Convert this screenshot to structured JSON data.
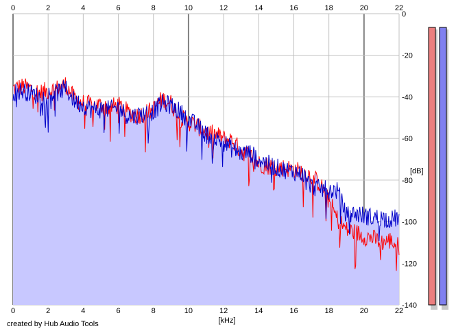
{
  "footer": {
    "credit": "created by Hub Audio Tools"
  },
  "chart_data": {
    "type": "line",
    "xlabel": "[kHz]",
    "ylabel": "[dB]",
    "xlim": [
      0,
      22
    ],
    "ylim": [
      -140,
      0
    ],
    "xticks": [
      0,
      2,
      4,
      6,
      8,
      10,
      12,
      14,
      16,
      18,
      20,
      22
    ],
    "yticks": [
      0,
      -20,
      -40,
      -60,
      -80,
      -100,
      -120,
      -140
    ],
    "grid": true,
    "legend": "none",
    "colors": {
      "left_channel": "#ff0000",
      "right_channel": "#0000c8",
      "fill": "#c8c8ff",
      "grid": "#c0c0c0",
      "grid_major": "#808080",
      "meter_left": "#ec7f7f",
      "meter_right": "#8080f0"
    },
    "x": [
      0,
      0.5,
      1,
      1.5,
      2,
      2.5,
      3,
      3.5,
      4,
      4.5,
      5,
      5.5,
      6,
      6.5,
      7,
      7.5,
      8,
      8.5,
      9,
      9.5,
      10,
      10.5,
      11,
      11.5,
      12,
      12.5,
      13,
      13.5,
      14,
      14.5,
      15,
      15.5,
      16,
      16.5,
      17,
      17.5,
      18,
      18.5,
      19,
      19.5,
      20,
      20.5,
      21,
      21.5,
      22
    ],
    "series": [
      {
        "values": [
          -36,
          -35,
          -36,
          -38,
          -37,
          -36,
          -34,
          -41,
          -43,
          -44,
          -44,
          -45,
          -44,
          -47,
          -49,
          -48,
          -46,
          -41,
          -43,
          -50,
          -52,
          -54,
          -57,
          -58,
          -60,
          -61,
          -66,
          -68,
          -72,
          -73,
          -74,
          -74,
          -75,
          -76,
          -78,
          -82,
          -90,
          -99,
          -104,
          -105,
          -107,
          -108,
          -110,
          -109,
          -112
        ]
      },
      {
        "values": [
          -38,
          -37,
          -38,
          -40,
          -39,
          -38,
          -36,
          -42,
          -44,
          -46,
          -46,
          -46,
          -45,
          -49,
          -49,
          -48,
          -47,
          -43,
          -44,
          -47,
          -51,
          -54,
          -58,
          -60,
          -62,
          -65,
          -67,
          -67,
          -70,
          -72,
          -74,
          -75,
          -76,
          -77,
          -83,
          -84,
          -85,
          -85,
          -97,
          -96,
          -97,
          -98,
          -98,
          -99,
          -98
        ]
      }
    ],
    "meters": {
      "left_db": -140,
      "right_db": -140
    }
  }
}
